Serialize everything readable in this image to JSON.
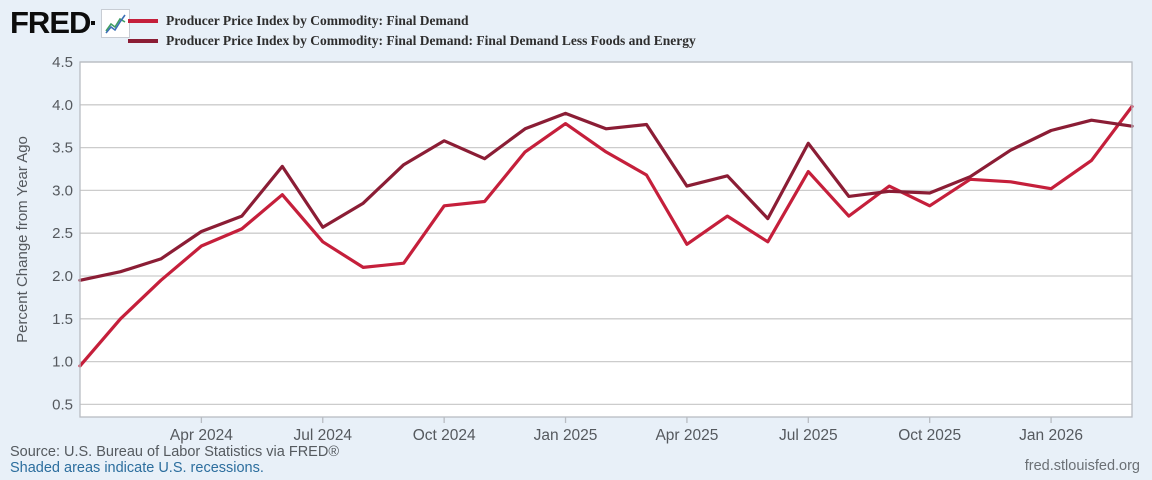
{
  "header": {
    "logo_text": "FRED",
    "legend": [
      {
        "label": "Producer Price Index by Commodity: Final Demand",
        "color": "#c51f3b"
      },
      {
        "label": "Producer Price Index by Commodity: Final Demand: Final Demand Less Foods and Energy",
        "color": "#8b1d35"
      }
    ]
  },
  "footer": {
    "source": "Source: U.S. Bureau of Labor Statistics via FRED®",
    "recessions_note": "Shaded areas indicate U.S. recessions.",
    "site": "fred.stlouisfed.org"
  },
  "chart_data": {
    "type": "line",
    "title": "",
    "xlabel": "",
    "ylabel": "Percent Change from Year Ago",
    "ylim": [
      0.36,
      4.5
    ],
    "y_ticks": [
      0.5,
      1.0,
      1.5,
      2.0,
      2.5,
      3.0,
      3.5,
      4.0,
      4.5
    ],
    "grid": true,
    "legend_position": "top-left",
    "x": [
      "2024-01",
      "2024-02",
      "2024-03",
      "2024-04",
      "2024-05",
      "2024-06",
      "2024-07",
      "2024-08",
      "2024-09",
      "2024-10",
      "2024-11",
      "2024-12",
      "2025-01",
      "2025-02",
      "2025-03",
      "2025-04",
      "2025-05",
      "2025-06",
      "2025-07",
      "2025-08",
      "2025-09",
      "2025-10",
      "2025-11",
      "2025-12",
      "2026-01",
      "2026-02",
      "2026-03"
    ],
    "x_tick_labels": [
      {
        "label": "Apr 2024",
        "index": 3
      },
      {
        "label": "Jul 2024",
        "index": 6
      },
      {
        "label": "Oct 2024",
        "index": 9
      },
      {
        "label": "Jan 2025",
        "index": 12
      },
      {
        "label": "Apr 2025",
        "index": 15
      },
      {
        "label": "Jul 2025",
        "index": 18
      },
      {
        "label": "Oct 2025",
        "index": 21
      },
      {
        "label": "Jan 2026",
        "index": 24
      }
    ],
    "series": [
      {
        "name": "Producer Price Index by Commodity: Final Demand",
        "color": "#c51f3b",
        "values": [
          0.95,
          1.5,
          1.95,
          2.35,
          2.55,
          2.95,
          2.4,
          2.1,
          2.15,
          2.82,
          2.87,
          3.45,
          3.78,
          3.45,
          3.18,
          2.37,
          2.7,
          2.4,
          3.22,
          2.7,
          3.05,
          2.82,
          3.13,
          3.1,
          3.02,
          3.35,
          3.98
        ]
      },
      {
        "name": "Producer Price Index by Commodity: Final Demand: Final Demand Less Foods and Energy",
        "color": "#8b1d35",
        "values": [
          1.95,
          2.05,
          2.2,
          2.52,
          2.7,
          3.28,
          2.57,
          2.85,
          3.3,
          3.58,
          3.37,
          3.72,
          3.9,
          3.72,
          3.77,
          3.05,
          3.17,
          2.67,
          3.55,
          2.93,
          2.99,
          2.97,
          3.16,
          3.47,
          3.7,
          3.82,
          3.75
        ]
      }
    ]
  }
}
